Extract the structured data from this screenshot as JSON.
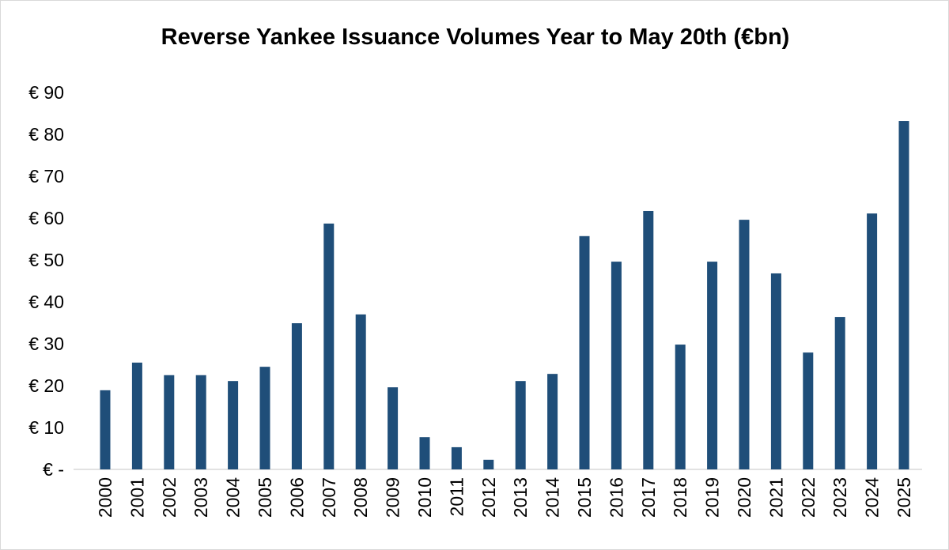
{
  "chart_data": {
    "type": "bar",
    "title": "Reverse Yankee Issuance Volumes Year to May 20th (€bn)",
    "xlabel": "",
    "ylabel": "",
    "categories": [
      "2000",
      "2001",
      "2002",
      "2003",
      "2004",
      "2005",
      "2006",
      "2007",
      "2008",
      "2009",
      "2010",
      "2011",
      "2012",
      "2013",
      "2014",
      "2015",
      "2016",
      "2017",
      "2018",
      "2019",
      "2020",
      "2021",
      "2022",
      "2023",
      "2024",
      "2025"
    ],
    "values": [
      18.9,
      25.5,
      22.5,
      22.5,
      21.1,
      24.5,
      34.9,
      58.7,
      37.0,
      19.6,
      7.7,
      5.3,
      2.3,
      21.1,
      22.8,
      55.7,
      49.6,
      61.7,
      29.8,
      49.6,
      59.6,
      46.8,
      27.9,
      36.4,
      61.1,
      83.2
    ],
    "ylim": [
      0,
      90
    ],
    "yticks": [
      0,
      10,
      20,
      30,
      40,
      50,
      60,
      70,
      80,
      90
    ],
    "ytick_labels": [
      "€ -",
      "€ 10",
      "€ 20",
      "€ 30",
      "€ 40",
      "€ 50",
      "€ 60",
      "€ 70",
      "€ 80",
      "€ 90"
    ],
    "grid": false,
    "legend": "none",
    "bar_color": "#1f4e79"
  }
}
